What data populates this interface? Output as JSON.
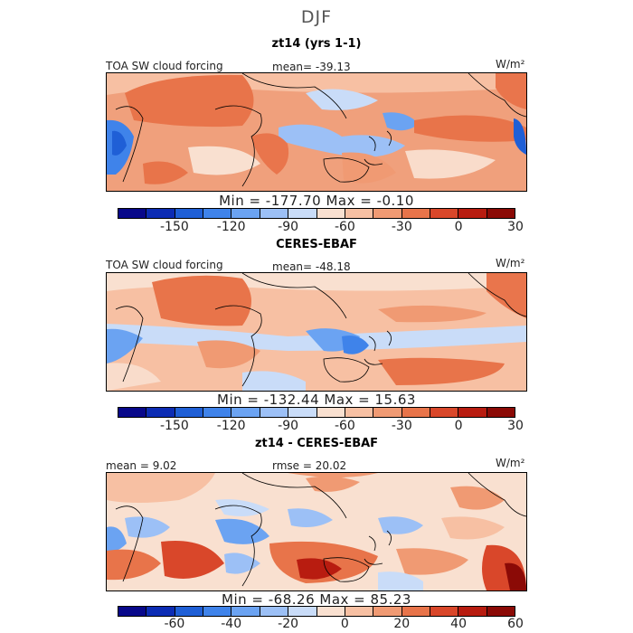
{
  "season": "DJF",
  "panels": [
    {
      "subtitle": "zt14 (yrs 1-1)",
      "left_label": "TOA SW cloud forcing",
      "center_label": "mean=  -39.13",
      "units": "W/m²",
      "minmax": "Min = -177.70  Max =  -0.10",
      "colorbar_ticks": [
        "-150",
        "-120",
        "-90",
        "-60",
        "-30",
        "0",
        "30"
      ]
    },
    {
      "subtitle": "CERES-EBAF",
      "left_label": "TOA SW cloud forcing",
      "center_label": "mean=  -48.18",
      "units": "W/m²",
      "minmax": "Min = -132.44  Max =  15.63",
      "colorbar_ticks": [
        "-150",
        "-120",
        "-90",
        "-60",
        "-30",
        "0",
        "30"
      ]
    },
    {
      "subtitle": "zt14 - CERES-EBAF",
      "left_label": "mean =   9.02",
      "center_label": "rmse =  20.02",
      "units": "W/m²",
      "minmax": "Min = -68.26  Max =  85.23",
      "colorbar_ticks": [
        "-60",
        "-40",
        "-20",
        "0",
        "20",
        "40",
        "60"
      ]
    }
  ],
  "colorbar_colors": [
    "#08088a",
    "#0c2cb4",
    "#1f5fd6",
    "#3f83ea",
    "#6ba3f2",
    "#9cc0f6",
    "#c9dcf8",
    "#f9e0d0",
    "#f7c0a3",
    "#f09a73",
    "#e8744a",
    "#d9472a",
    "#b81c10",
    "#8b0a06"
  ],
  "colors": {
    "ocean_warm": "#f29b74",
    "ocean_pale": "#f9dccb",
    "land_red": "#e9754c",
    "cloud_blue": "#7fa8ee",
    "deep_blue": "#2f60d8"
  }
}
